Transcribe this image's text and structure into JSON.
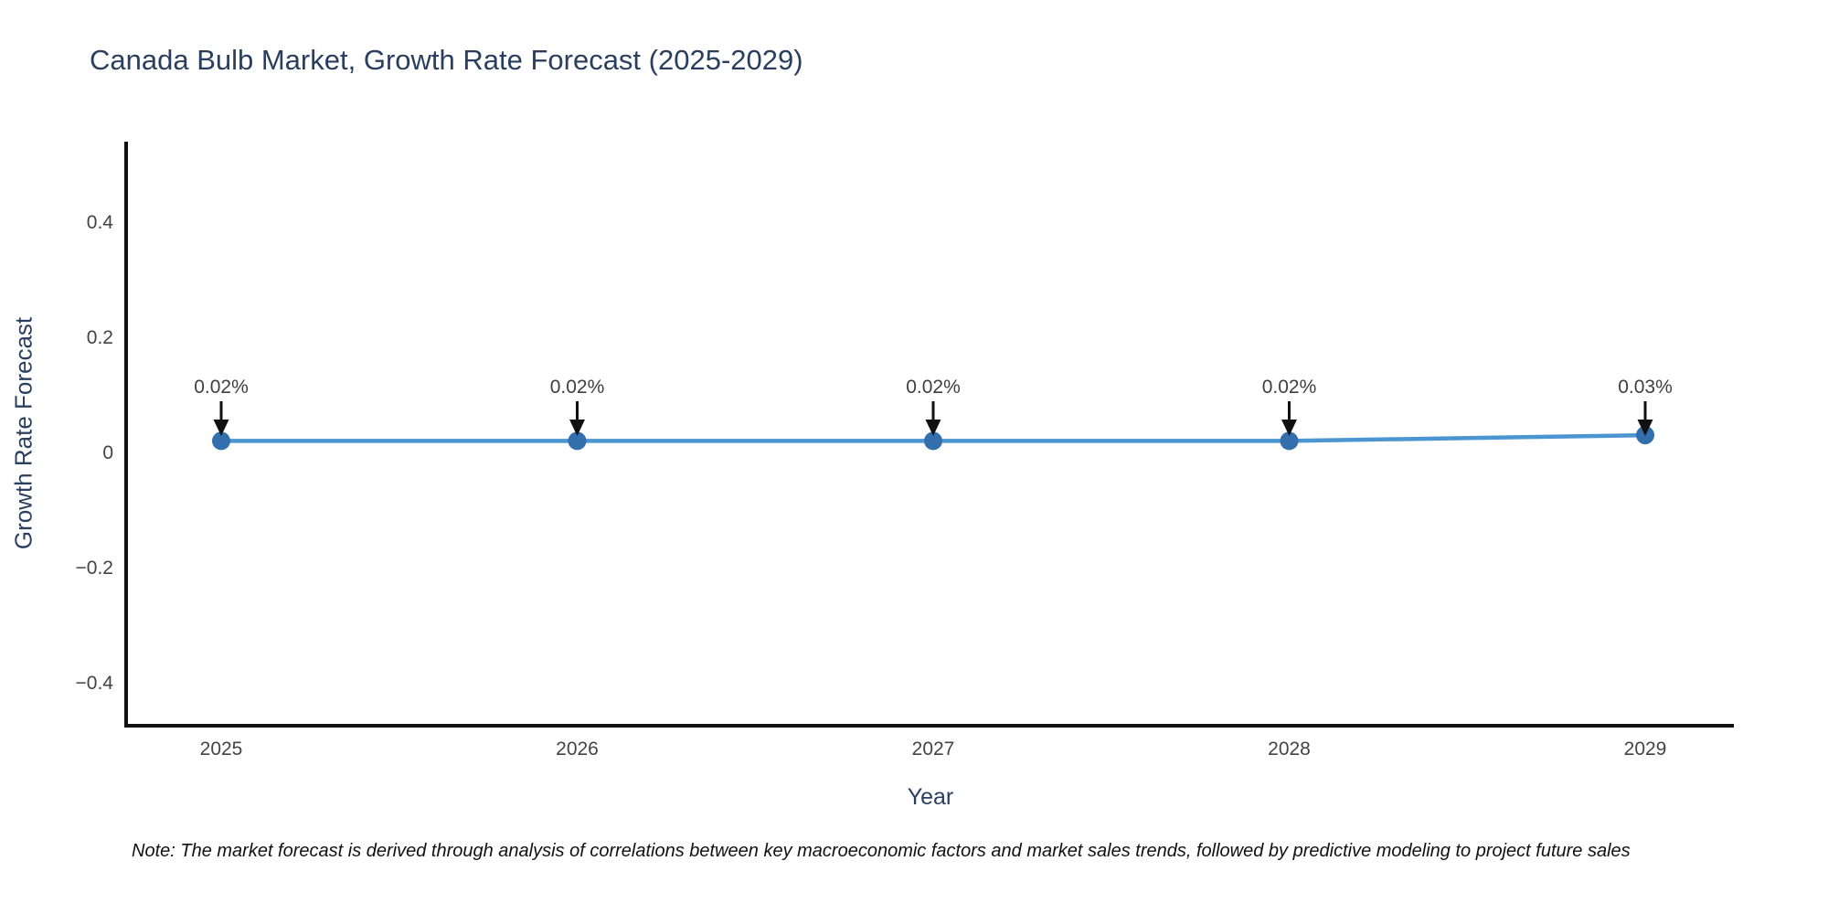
{
  "note": "Note: The market forecast is derived through analysis of correlations between key macroeconomic factors and market sales trends, followed by predictive modeling to project future sales",
  "chart_data": {
    "type": "line",
    "title": "Canada Bulb Market, Growth Rate Forecast (2025-2029)",
    "xlabel": "Year",
    "ylabel": "Growth Rate Forecast",
    "categories": [
      "2025",
      "2026",
      "2027",
      "2028",
      "2029"
    ],
    "series": [
      {
        "name": "Growth Rate Forecast",
        "values": [
          0.02,
          0.02,
          0.02,
          0.02,
          0.03
        ],
        "point_labels": [
          "0.02%",
          "0.02%",
          "0.02%",
          "0.02%",
          "0.03%"
        ]
      }
    ],
    "yticks": [
      0.4,
      0.2,
      0,
      -0.2,
      -0.4
    ],
    "ytick_labels": [
      "0.4",
      "0.2",
      "0",
      "−0.2",
      "−0.4"
    ],
    "ylim": [
      -0.475,
      0.54
    ],
    "grid": false,
    "legend_position": "none",
    "colors": {
      "line": "#4b95d1",
      "marker": "#346fad",
      "axis_line": "#111111",
      "tick_label": "#444444",
      "annotation_text": "#3f3f3f",
      "annotation_arrow": "#111111",
      "title_text": "#2a3f5f",
      "background": "#ffffff"
    }
  }
}
